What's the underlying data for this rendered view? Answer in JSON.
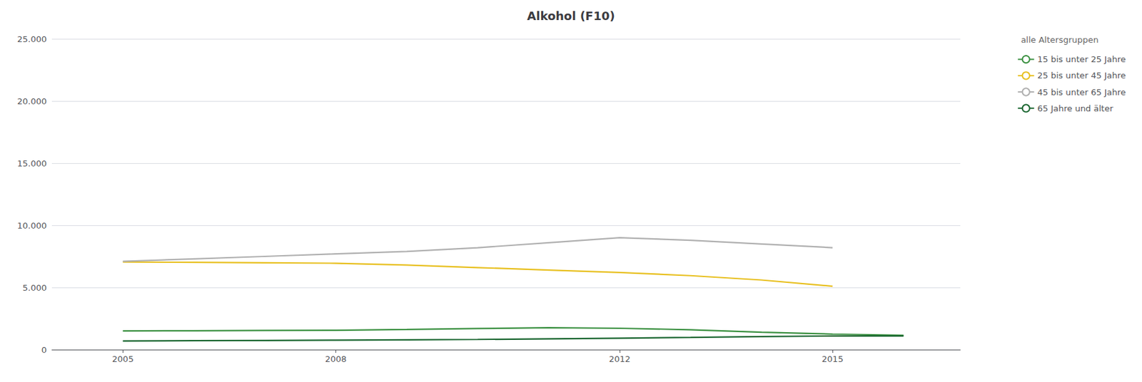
{
  "chart_data": {
    "type": "line",
    "title": "Alkohol (F10)",
    "legend_title": "alle Altersgruppen",
    "x": [
      2005,
      2006,
      2007,
      2008,
      2009,
      2010,
      2011,
      2012,
      2013,
      2014,
      2015,
      2016
    ],
    "series": [
      {
        "name": "15 bis unter 25 Jahre",
        "color": "#3a9040",
        "values": [
          1500,
          1520,
          1540,
          1560,
          1620,
          1700,
          1760,
          1720,
          1600,
          1400,
          1250,
          1150
        ]
      },
      {
        "name": "25 bis unter 45 Jahre",
        "color": "#e8c020",
        "values": [
          7050,
          7020,
          6990,
          6950,
          6800,
          6600,
          6400,
          6200,
          5950,
          5600,
          5100,
          null
        ]
      },
      {
        "name": "45 bis unter 65 Jahre",
        "color": "#b0b0b0",
        "values": [
          7100,
          7300,
          7500,
          7700,
          7900,
          8200,
          8600,
          9000,
          8800,
          8500,
          8200,
          null
        ]
      },
      {
        "name": "65 Jahre und älter",
        "color": "#1a6630",
        "values": [
          700,
          720,
          740,
          760,
          790,
          820,
          870,
          920,
          980,
          1050,
          1100,
          1100
        ]
      }
    ],
    "xlim": [
      2004.0,
      2016.8
    ],
    "xticks": [
      2005,
      2008,
      2012,
      2015
    ],
    "ylim": [
      0,
      25000
    ],
    "yticks": [
      0,
      {
        "value": 5000,
        "label": "5.000"
      },
      {
        "value": 10000,
        "label": "10.000"
      },
      {
        "value": 15000,
        "label": "15.000"
      },
      {
        "value": 20000,
        "label": "20.000"
      },
      {
        "value": 25000,
        "label": "25.000"
      }
    ],
    "grid": true,
    "legend": "right"
  }
}
